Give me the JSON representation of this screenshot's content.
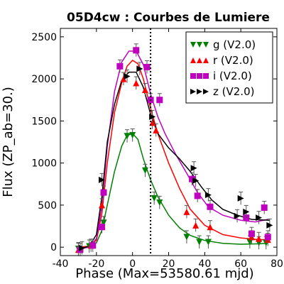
{
  "chart_data": {
    "type": "line",
    "title": "05D4cw : Courbes de Lumiere",
    "xlabel": "Phase (Max=53580.61 mjd)",
    "ylabel": "Flux (ZP_ab=30.)",
    "xlim": [
      -40,
      80
    ],
    "ylim": [
      -100,
      2600
    ],
    "xticks": [
      "-40",
      "-20",
      "0",
      "20",
      "40",
      "60",
      "80"
    ],
    "yticks": [
      "0",
      "500",
      "1000",
      "1500",
      "2000",
      "2500"
    ],
    "xtick_values": [
      -40,
      -20,
      0,
      20,
      40,
      60,
      80
    ],
    "ytick_values": [
      0,
      500,
      1000,
      1500,
      2000,
      2500
    ],
    "max_line_x": 10,
    "legend_position": "top-right",
    "series": [
      {
        "name": "g (V2.0)",
        "color": "#008000",
        "marker": "triangle-down",
        "points": [
          [
            -30,
            -20
          ],
          [
            -24,
            10
          ],
          [
            -16,
            290
          ],
          [
            -3,
            1320
          ],
          [
            0,
            1330
          ],
          [
            7,
            910
          ],
          [
            12,
            580
          ],
          [
            15,
            530
          ],
          [
            30,
            120
          ],
          [
            37,
            60
          ],
          [
            42,
            60
          ],
          [
            65,
            60
          ],
          [
            70,
            50
          ],
          [
            74,
            50
          ]
        ],
        "curve": [
          [
            -30,
            -10
          ],
          [
            -25,
            0
          ],
          [
            -20,
            50
          ],
          [
            -17,
            200
          ],
          [
            -14,
            500
          ],
          [
            -10,
            900
          ],
          [
            -6,
            1200
          ],
          [
            -3,
            1330
          ],
          [
            0,
            1350
          ],
          [
            3,
            1280
          ],
          [
            6,
            1050
          ],
          [
            10,
            800
          ],
          [
            14,
            600
          ],
          [
            20,
            380
          ],
          [
            26,
            230
          ],
          [
            32,
            140
          ],
          [
            40,
            80
          ],
          [
            50,
            45
          ],
          [
            60,
            35
          ],
          [
            70,
            40
          ],
          [
            74,
            45
          ]
        ]
      },
      {
        "name": "r (V2.0)",
        "color": "#ff0000",
        "marker": "triangle-up",
        "points": [
          [
            -30,
            -30
          ],
          [
            -23,
            20
          ],
          [
            -17,
            500
          ],
          [
            -5,
            2000
          ],
          [
            2,
            1950
          ],
          [
            7,
            1870
          ],
          [
            11,
            1480
          ],
          [
            13,
            1390
          ],
          [
            30,
            420
          ],
          [
            35,
            260
          ],
          [
            43,
            240
          ],
          [
            66,
            120
          ],
          [
            70,
            100
          ],
          [
            75,
            90
          ]
        ],
        "curve": [
          [
            -30,
            0
          ],
          [
            -25,
            10
          ],
          [
            -20,
            80
          ],
          [
            -17,
            400
          ],
          [
            -14,
            1000
          ],
          [
            -10,
            1600
          ],
          [
            -6,
            1950
          ],
          [
            -3,
            2150
          ],
          [
            0,
            2220
          ],
          [
            3,
            2180
          ],
          [
            6,
            2000
          ],
          [
            10,
            1650
          ],
          [
            14,
            1350
          ],
          [
            20,
            1000
          ],
          [
            26,
            700
          ],
          [
            32,
            450
          ],
          [
            40,
            260
          ],
          [
            50,
            150
          ],
          [
            60,
            110
          ],
          [
            70,
            90
          ],
          [
            75,
            90
          ]
        ]
      },
      {
        "name": "i (V2.0)",
        "color": "#bf00bf",
        "marker": "square",
        "points": [
          [
            -29,
            -30
          ],
          [
            -22,
            20
          ],
          [
            -17,
            240
          ],
          [
            -16,
            650
          ],
          [
            -7,
            2150
          ],
          [
            2,
            2340
          ],
          [
            8,
            2140
          ],
          [
            10,
            1750
          ],
          [
            15,
            1750
          ],
          [
            33,
            810
          ],
          [
            36,
            610
          ],
          [
            43,
            480
          ],
          [
            63,
            350
          ],
          [
            66,
            160
          ],
          [
            73,
            470
          ],
          [
            75,
            120
          ]
        ],
        "curve": [
          [
            -29,
            -20
          ],
          [
            -24,
            0
          ],
          [
            -20,
            100
          ],
          [
            -17,
            500
          ],
          [
            -14,
            1200
          ],
          [
            -10,
            1850
          ],
          [
            -6,
            2200
          ],
          [
            -2,
            2330
          ],
          [
            2,
            2330
          ],
          [
            6,
            2170
          ],
          [
            10,
            1820
          ],
          [
            14,
            1550
          ],
          [
            18,
            1350
          ],
          [
            24,
            1100
          ],
          [
            30,
            880
          ],
          [
            36,
            650
          ],
          [
            42,
            480
          ],
          [
            50,
            380
          ],
          [
            60,
            320
          ],
          [
            68,
            300
          ],
          [
            75,
            330
          ]
        ]
      },
      {
        "name": "z (V2.0)",
        "color": "#000000",
        "marker": "triangle-right",
        "points": [
          [
            -28,
            -10
          ],
          [
            -17,
            800
          ],
          [
            -3,
            2030
          ],
          [
            4,
            2120
          ],
          [
            11,
            1550
          ],
          [
            34,
            940
          ],
          [
            35,
            790
          ],
          [
            42,
            620
          ],
          [
            58,
            370
          ],
          [
            60,
            580
          ],
          [
            63,
            420
          ],
          [
            70,
            350
          ],
          [
            76,
            260
          ]
        ],
        "curve": [
          [
            -28,
            -10
          ],
          [
            -24,
            10
          ],
          [
            -20,
            150
          ],
          [
            -17,
            600
          ],
          [
            -14,
            1250
          ],
          [
            -10,
            1700
          ],
          [
            -6,
            1980
          ],
          [
            -2,
            2080
          ],
          [
            2,
            2080
          ],
          [
            6,
            1900
          ],
          [
            10,
            1580
          ],
          [
            14,
            1350
          ],
          [
            20,
            1180
          ],
          [
            26,
            1050
          ],
          [
            32,
            900
          ],
          [
            38,
            720
          ],
          [
            44,
            560
          ],
          [
            50,
            450
          ],
          [
            58,
            380
          ],
          [
            66,
            330
          ],
          [
            76,
            320
          ]
        ]
      }
    ]
  }
}
